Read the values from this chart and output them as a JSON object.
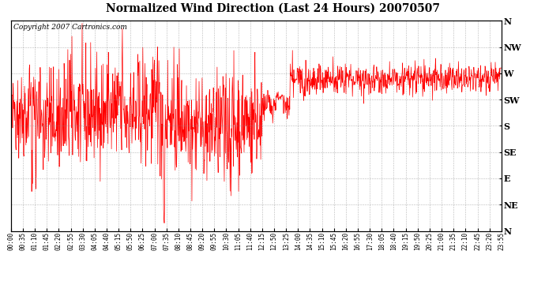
{
  "title": "Normalized Wind Direction (Last 24 Hours) 20070507",
  "copyright_text": "Copyright 2007 Cartronics.com",
  "line_color": "#FF0000",
  "background_color": "#FFFFFF",
  "grid_color": "#888888",
  "ylabel_right": [
    "N",
    "NW",
    "W",
    "SW",
    "S",
    "SE",
    "E",
    "NE",
    "N"
  ],
  "ylabel_values": [
    8,
    7,
    6,
    5,
    4,
    3,
    2,
    1,
    0
  ],
  "ylim": [
    0,
    8
  ],
  "xtick_labels": [
    "00:00",
    "00:35",
    "01:10",
    "01:45",
    "02:20",
    "02:55",
    "03:30",
    "04:05",
    "04:40",
    "05:15",
    "05:50",
    "06:25",
    "07:00",
    "07:35",
    "08:10",
    "08:45",
    "09:20",
    "09:55",
    "10:30",
    "11:05",
    "11:40",
    "12:15",
    "12:50",
    "13:25",
    "14:00",
    "14:35",
    "15:10",
    "15:45",
    "16:20",
    "16:55",
    "17:30",
    "18:05",
    "18:40",
    "19:15",
    "19:50",
    "20:25",
    "21:00",
    "21:35",
    "22:10",
    "22:45",
    "23:20",
    "23:55"
  ],
  "seed": 42,
  "n_points": 1440,
  "base_level": 4.3,
  "noise_std": 0.9,
  "figsize": [
    6.9,
    3.75
  ],
  "dpi": 100
}
